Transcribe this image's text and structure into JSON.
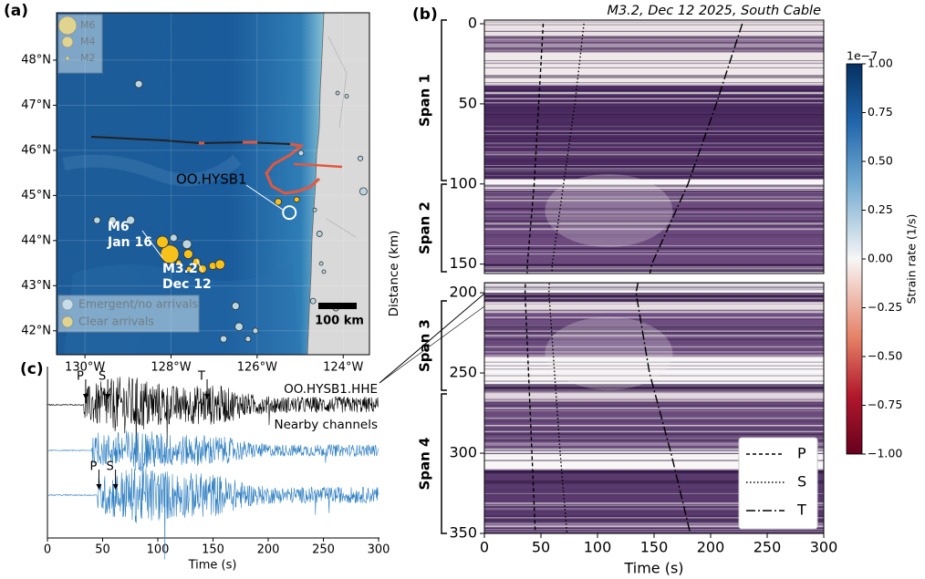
{
  "chart_data": [
    {
      "type": "map",
      "label": "(a)",
      "xlim": [
        -130.66,
        -123.39
      ],
      "ylim": [
        41.47,
        49.05
      ],
      "xticks": [
        {
          "value": -130,
          "label": "130°W"
        },
        {
          "value": -128,
          "label": "128°W"
        },
        {
          "value": -126,
          "label": "126°W"
        },
        {
          "value": -124,
          "label": "124°W"
        }
      ],
      "yticks": [
        {
          "value": 42,
          "label": "42°N"
        },
        {
          "value": 43,
          "label": "43°N"
        },
        {
          "value": 44,
          "label": "44°N"
        },
        {
          "value": 45,
          "label": "45°N"
        },
        {
          "value": 46,
          "label": "46°N"
        },
        {
          "value": 47,
          "label": "47°N"
        },
        {
          "value": 48,
          "label": "48°N"
        }
      ],
      "grid": true,
      "size_legend": [
        {
          "name": "M6",
          "magnitude": 6
        },
        {
          "name": "M4",
          "magnitude": 4
        },
        {
          "name": "M2",
          "magnitude": 2
        }
      ],
      "class_legend": [
        {
          "name": "Emergent/no arrivals",
          "color": "#b9d7e3"
        },
        {
          "name": "Clear arrivals",
          "color": "#f6c21a"
        }
      ],
      "events": [
        {
          "lon": -128.03,
          "lat": 43.7,
          "magnitude": 6,
          "class": 1
        },
        {
          "lon": -128.2,
          "lat": 43.97,
          "magnitude": 4.2,
          "class": 1
        },
        {
          "lon": -127.6,
          "lat": 43.7,
          "magnitude": 3.5,
          "class": 1
        },
        {
          "lon": -127.41,
          "lat": 43.53,
          "magnitude": 3,
          "class": 1
        },
        {
          "lon": -127.27,
          "lat": 43.37,
          "magnitude": 3.2,
          "class": 1
        },
        {
          "lon": -127.03,
          "lat": 43.44,
          "magnitude": 3,
          "class": 1
        },
        {
          "lon": -126.86,
          "lat": 43.47,
          "magnitude": 3.6,
          "class": 1
        },
        {
          "lon": -127.58,
          "lat": 43.37,
          "magnitude": 2.5,
          "class": 1
        },
        {
          "lon": -127.82,
          "lat": 43.51,
          "magnitude": 2.5,
          "class": 1
        },
        {
          "lon": -125.51,
          "lat": 44.86,
          "magnitude": 2.8,
          "class": 1
        },
        {
          "lon": -125.08,
          "lat": 44.91,
          "magnitude": 2.5,
          "class": 1
        },
        {
          "lon": -128.75,
          "lat": 47.47,
          "magnitude": 3,
          "class": 0
        },
        {
          "lon": -129.72,
          "lat": 44.45,
          "magnitude": 2.8,
          "class": 0
        },
        {
          "lon": -129.36,
          "lat": 44.45,
          "magnitude": 3,
          "class": 0
        },
        {
          "lon": -128.94,
          "lat": 44.45,
          "magnitude": 3.3,
          "class": 0
        },
        {
          "lon": -127.63,
          "lat": 43.92,
          "magnitude": 3.5,
          "class": 0
        },
        {
          "lon": -127.94,
          "lat": 44.06,
          "magnitude": 3,
          "class": 0
        },
        {
          "lon": -124.98,
          "lat": 45.94,
          "magnitude": 2.5,
          "class": 0
        },
        {
          "lon": -124.13,
          "lat": 47.27,
          "magnitude": 2,
          "class": 0
        },
        {
          "lon": -123.92,
          "lat": 47.2,
          "magnitude": 2,
          "class": 0
        },
        {
          "lon": -123.53,
          "lat": 45.09,
          "magnitude": 3,
          "class": 0
        },
        {
          "lon": -124.66,
          "lat": 44.68,
          "magnitude": 2,
          "class": 0
        },
        {
          "lon": -124.55,
          "lat": 44.15,
          "magnitude": 2.5,
          "class": 0
        },
        {
          "lon": -124.51,
          "lat": 43.49,
          "magnitude": 2,
          "class": 0
        },
        {
          "lon": -124.7,
          "lat": 42.66,
          "magnitude": 2.5,
          "class": 0
        },
        {
          "lon": -126.5,
          "lat": 42.55,
          "magnitude": 3,
          "class": 0
        },
        {
          "lon": -126.42,
          "lat": 42.09,
          "magnitude": 3.2,
          "class": 0
        },
        {
          "lon": -126.78,
          "lat": 41.82,
          "magnitude": 2.8,
          "class": 0
        },
        {
          "lon": -126.21,
          "lat": 41.82,
          "magnitude": 2.5,
          "class": 0
        },
        {
          "lon": -126.04,
          "lat": 42.0,
          "magnitude": 2.5,
          "class": 0
        },
        {
          "lon": -124.17,
          "lat": 42.5,
          "magnitude": 2.5,
          "class": 0
        },
        {
          "lon": -123.6,
          "lat": 45.82,
          "magnitude": 2.3,
          "class": 0
        },
        {
          "lon": -124.45,
          "lat": 43.31,
          "magnitude": 2,
          "class": 0
        }
      ],
      "station": {
        "name": "OO.HYSB1",
        "lon": -125.25,
        "lat": 44.62
      },
      "annotations": [
        {
          "lines": [
            "M6",
            "Jan 16"
          ]
        },
        {
          "lines": [
            "M3.2",
            "Dec 12"
          ]
        }
      ],
      "scale_bar": "100 km"
    },
    {
      "type": "heatmap",
      "label": "(b)",
      "title": "M3.2, Dec 12 2025, South Cable",
      "xlabel": "Time (s)",
      "ylabel": "Distance (km)",
      "xlim": [
        0,
        300
      ],
      "xticks": [
        0,
        50,
        100,
        150,
        200,
        250,
        300
      ],
      "y_segments": [
        {
          "ylim": [
            -2.3,
            155.9
          ],
          "yticks": [
            0,
            50,
            100,
            150
          ]
        },
        {
          "ylim": [
            193.7,
            350
          ],
          "yticks": [
            200,
            250,
            300,
            350
          ]
        }
      ],
      "spans": [
        "Span 1",
        "Span 2",
        "Span 3",
        "Span 4"
      ],
      "series": [
        {
          "name": "P",
          "dash": "4,3",
          "x": [
            52,
            48,
            44,
            38,
            36,
            39,
            42,
            45
          ],
          "y": [
            0,
            50,
            100,
            150,
            200,
            250,
            300,
            350
          ]
        },
        {
          "name": "S",
          "dash": "1.5,2.5",
          "x": [
            88,
            80,
            70,
            60,
            57,
            62,
            67,
            73
          ],
          "y": [
            0,
            50,
            100,
            150,
            200,
            250,
            300,
            350
          ]
        },
        {
          "name": "T",
          "dash": "10,3,2,3",
          "x": [
            228,
            205,
            180,
            148,
            134,
            146,
            165,
            182
          ],
          "y": [
            0,
            50,
            100,
            150,
            200,
            250,
            300,
            350
          ]
        }
      ],
      "colorbar": {
        "label": "Strain rate (1/s)",
        "exponent": "1e−7",
        "lim": [
          -1,
          1
        ],
        "ticks": [
          {
            "value": 1,
            "label": "1.00"
          },
          0.75,
          {
            "value": 0.5,
            "label": "0.50"
          },
          0.25,
          {
            "value": 0,
            "label": "0.00"
          },
          {
            "value": -0.25,
            "label": "−0.25"
          },
          {
            "value": -0.5,
            "label": "−0.50"
          },
          {
            "value": -0.75,
            "label": "−0.75"
          },
          {
            "value": -1,
            "label": "−1.00"
          }
        ]
      }
    },
    {
      "type": "waveform",
      "label": "(c)",
      "xlabel": "Time (s)",
      "xlim": [
        0,
        300
      ],
      "xticks": [
        0,
        50,
        100,
        150,
        200,
        250,
        300
      ],
      "traces": [
        {
          "name": "OO.HYSB1.HHE",
          "color": "#000000",
          "picks": [
            {
              "label": "P",
              "time": 33
            },
            {
              "label": "S",
              "time": 53
            },
            {
              "label": "T",
              "time": 143
            }
          ]
        },
        {
          "name": "Nearby channels",
          "color": "#2f7fc1",
          "picks": []
        },
        {
          "color": "#2f7fc1",
          "picks": [
            {
              "label": "P",
              "time": 45
            },
            {
              "label": "S",
              "time": 60
            }
          ]
        }
      ]
    }
  ]
}
